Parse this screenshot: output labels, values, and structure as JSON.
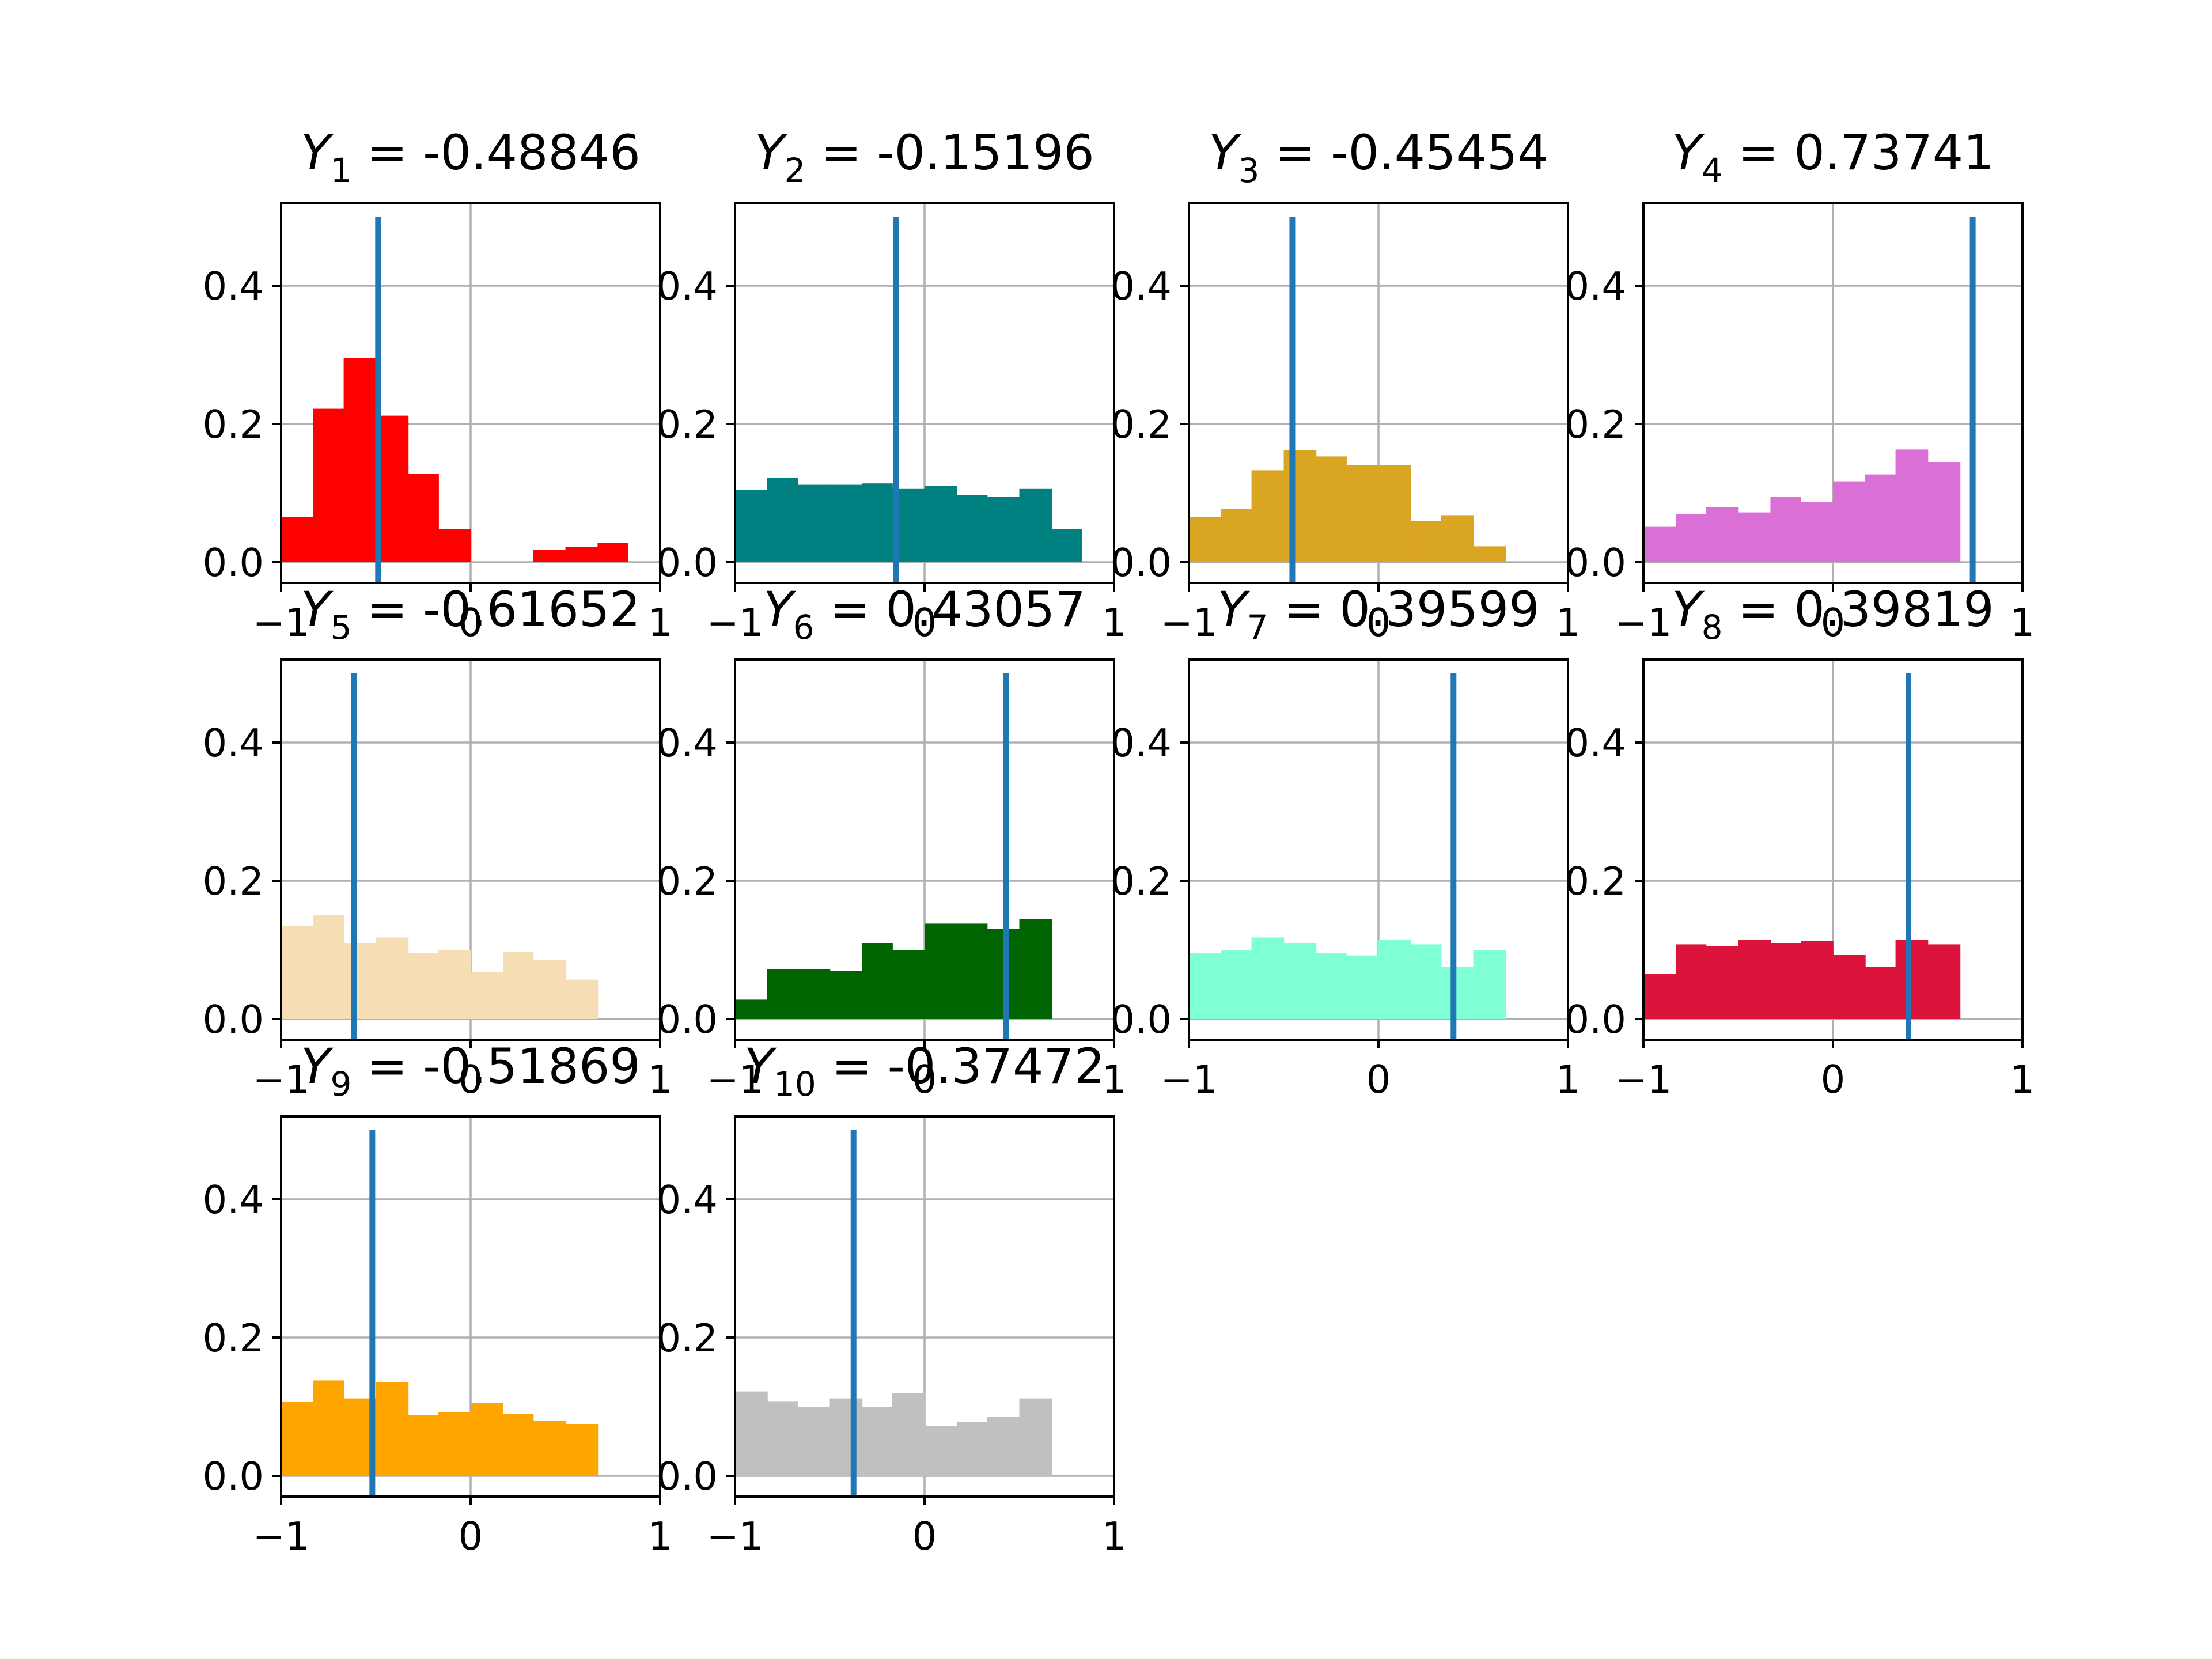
{
  "chart_data": {
    "type": "bar",
    "panel_count": 10,
    "marker_color": "#1f77b4",
    "grid": true,
    "layout": "4 columns x 3 rows",
    "axis_x_ticks": [
      "−1",
      "0",
      "1"
    ],
    "axis_y_ticks": [
      "0.0",
      "0.2",
      "0.4"
    ],
    "xlim": [
      -1,
      1
    ],
    "ylim": [
      -0.03,
      0.52
    ],
    "marker_ymax": 0.5,
    "bin_edges": [
      -1.0,
      -0.83,
      -0.67,
      -0.5,
      -0.33,
      -0.17,
      0.0,
      0.17,
      0.33,
      0.5,
      0.67,
      0.83,
      1.0
    ],
    "panels": [
      {
        "title_var": "Y",
        "title_sub": "1",
        "title_value": " = -0.48846",
        "marker_x": -0.48846,
        "color": "#ff0000",
        "hist": [
          0.065,
          0.222,
          0.295,
          0.212,
          0.128,
          0.048,
          0.0,
          0.0,
          0.018,
          0.022,
          0.028,
          0.0
        ]
      },
      {
        "title_var": "Y",
        "title_sub": "2",
        "title_value": " = -0.15196",
        "marker_x": -0.15196,
        "color": "#008080",
        "hist": [
          0.105,
          0.122,
          0.112,
          0.112,
          0.114,
          0.106,
          0.11,
          0.097,
          0.095,
          0.106,
          0.048,
          0.0
        ]
      },
      {
        "title_var": "Y",
        "title_sub": "3",
        "title_value": " = -0.45454",
        "marker_x": -0.45454,
        "color": "#daa520",
        "hist": [
          0.065,
          0.077,
          0.133,
          0.162,
          0.153,
          0.14,
          0.14,
          0.06,
          0.068,
          0.023,
          0.0,
          0.0
        ]
      },
      {
        "title_var": "Y",
        "title_sub": "4",
        "title_value": " = 0.73741",
        "marker_x": 0.73741,
        "color": "#da70d6",
        "hist": [
          0.052,
          0.07,
          0.08,
          0.072,
          0.095,
          0.087,
          0.117,
          0.127,
          0.163,
          0.145,
          0.0,
          0.0
        ]
      },
      {
        "title_var": "Y",
        "title_sub": "5",
        "title_value": " = -0.61652",
        "marker_x": -0.61652,
        "color": "#f5deb3",
        "hist": [
          0.135,
          0.15,
          0.11,
          0.118,
          0.095,
          0.1,
          0.068,
          0.097,
          0.085,
          0.057,
          0.0,
          0.0
        ]
      },
      {
        "title_var": "Y",
        "title_sub": "6",
        "title_value": " = 0.43057",
        "marker_x": 0.43057,
        "color": "#006400",
        "hist": [
          0.028,
          0.072,
          0.072,
          0.07,
          0.11,
          0.1,
          0.138,
          0.138,
          0.13,
          0.145,
          0.0,
          0.0
        ]
      },
      {
        "title_var": "Y",
        "title_sub": "7",
        "title_value": " = 0.39599",
        "marker_x": 0.39599,
        "color": "#7fffd4",
        "hist": [
          0.095,
          0.1,
          0.118,
          0.11,
          0.095,
          0.092,
          0.115,
          0.108,
          0.075,
          0.1,
          0.0,
          0.0
        ]
      },
      {
        "title_var": "Y",
        "title_sub": "8",
        "title_value": " = 0.39819",
        "marker_x": 0.39819,
        "color": "#dc143c",
        "hist": [
          0.065,
          0.108,
          0.105,
          0.115,
          0.11,
          0.113,
          0.093,
          0.075,
          0.115,
          0.108,
          0.0,
          0.0
        ]
      },
      {
        "title_var": "Y",
        "title_sub": "9",
        "title_value": " = -0.51869",
        "marker_x": -0.51869,
        "color": "#ffa500",
        "hist": [
          0.107,
          0.138,
          0.112,
          0.135,
          0.088,
          0.092,
          0.105,
          0.09,
          0.08,
          0.075,
          0.0,
          0.0
        ]
      },
      {
        "title_var": "Y",
        "title_sub": "10",
        "title_value": " = -0.37472",
        "marker_x": -0.37472,
        "color": "#c0c0c0",
        "hist": [
          0.122,
          0.108,
          0.1,
          0.112,
          0.1,
          0.12,
          0.072,
          0.078,
          0.085,
          0.112,
          0.0,
          0.0
        ]
      }
    ]
  }
}
